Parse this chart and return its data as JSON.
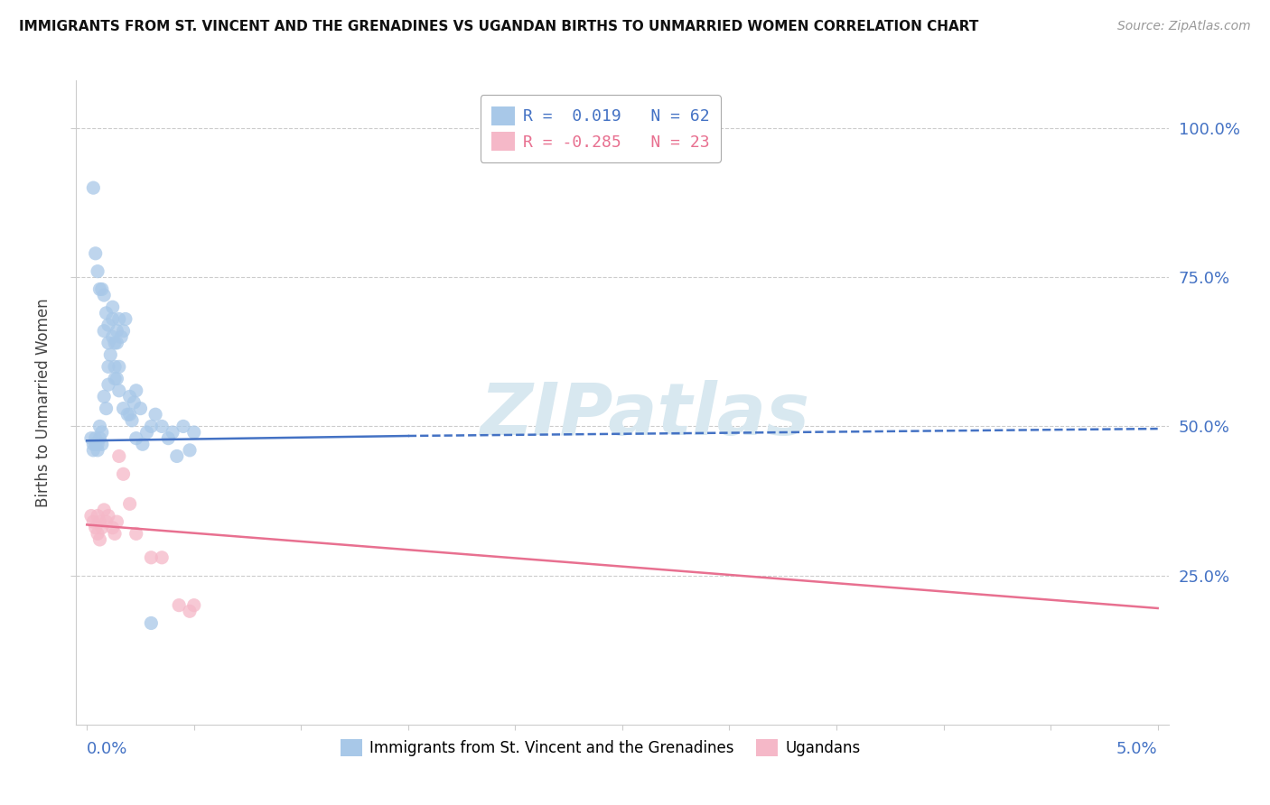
{
  "title": "IMMIGRANTS FROM ST. VINCENT AND THE GRENADINES VS UGANDAN BIRTHS TO UNMARRIED WOMEN CORRELATION CHART",
  "source": "Source: ZipAtlas.com",
  "ylabel": "Births to Unmarried Women",
  "legend_blue_r": "R =  0.019",
  "legend_blue_n": "N = 62",
  "legend_pink_r": "R = -0.285",
  "legend_pink_n": "N = 23",
  "legend_label_blue": "Immigrants from St. Vincent and the Grenadines",
  "legend_label_pink": "Ugandans",
  "blue_color": "#a8c8e8",
  "pink_color": "#f5b8c8",
  "trend_blue_color": "#4472c4",
  "trend_pink_color": "#e87090",
  "watermark": "ZIPatlas",
  "blue_x": [
    0.0002,
    0.0003,
    0.0003,
    0.0004,
    0.0004,
    0.0005,
    0.0005,
    0.0006,
    0.0006,
    0.0007,
    0.0007,
    0.0008,
    0.0008,
    0.0009,
    0.001,
    0.001,
    0.001,
    0.0011,
    0.0012,
    0.0012,
    0.0013,
    0.0013,
    0.0014,
    0.0014,
    0.0015,
    0.0015,
    0.0016,
    0.0017,
    0.0018,
    0.002,
    0.002,
    0.0022,
    0.0023,
    0.0025,
    0.0028,
    0.003,
    0.0032,
    0.0035,
    0.0038,
    0.004,
    0.0042,
    0.0045,
    0.0048,
    0.005,
    0.0003,
    0.0004,
    0.0005,
    0.0006,
    0.0007,
    0.0008,
    0.0009,
    0.001,
    0.0012,
    0.0013,
    0.0014,
    0.0015,
    0.0017,
    0.0019,
    0.0021,
    0.0023,
    0.0026,
    0.003
  ],
  "blue_y": [
    0.48,
    0.47,
    0.46,
    0.48,
    0.47,
    0.47,
    0.46,
    0.5,
    0.48,
    0.49,
    0.47,
    0.66,
    0.55,
    0.53,
    0.57,
    0.6,
    0.64,
    0.62,
    0.68,
    0.7,
    0.64,
    0.58,
    0.66,
    0.64,
    0.68,
    0.6,
    0.65,
    0.66,
    0.68,
    0.55,
    0.52,
    0.54,
    0.56,
    0.53,
    0.49,
    0.5,
    0.52,
    0.5,
    0.48,
    0.49,
    0.45,
    0.5,
    0.46,
    0.49,
    0.9,
    0.79,
    0.76,
    0.73,
    0.73,
    0.72,
    0.69,
    0.67,
    0.65,
    0.6,
    0.58,
    0.56,
    0.53,
    0.52,
    0.51,
    0.48,
    0.47,
    0.17
  ],
  "pink_x": [
    0.0002,
    0.0003,
    0.0004,
    0.0005,
    0.0005,
    0.0006,
    0.0006,
    0.0007,
    0.0008,
    0.0009,
    0.001,
    0.0012,
    0.0013,
    0.0014,
    0.0015,
    0.0017,
    0.002,
    0.0023,
    0.003,
    0.0035,
    0.0043,
    0.0048,
    0.005
  ],
  "pink_y": [
    0.35,
    0.34,
    0.33,
    0.32,
    0.35,
    0.34,
    0.31,
    0.33,
    0.36,
    0.34,
    0.35,
    0.33,
    0.32,
    0.34,
    0.45,
    0.42,
    0.37,
    0.32,
    0.28,
    0.28,
    0.2,
    0.19,
    0.2
  ],
  "blue_trend_x0": 0.0,
  "blue_trend_x1": 0.015,
  "blue_trend_x2": 0.05,
  "blue_trend_y0": 0.476,
  "blue_trend_y1": 0.484,
  "blue_trend_y2": 0.496,
  "pink_trend_x0": 0.0,
  "pink_trend_x1": 0.05,
  "pink_trend_y0": 0.335,
  "pink_trend_y1": 0.195,
  "xmin": 0.0,
  "xmax": 0.05,
  "ymin": 0.0,
  "ymax": 1.08,
  "yticks": [
    0.25,
    0.5,
    0.75,
    1.0
  ],
  "ytick_labels": [
    "25.0%",
    "50.0%",
    "75.0%",
    "100.0%"
  ]
}
